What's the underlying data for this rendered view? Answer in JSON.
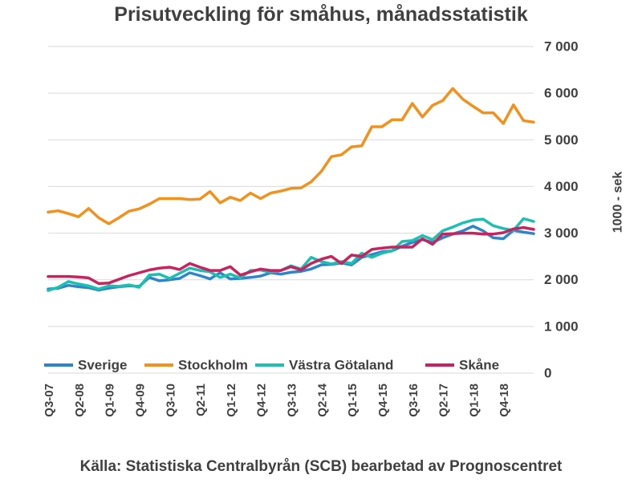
{
  "chart_data": {
    "type": "line",
    "title": "Prisutveckling för småhus, månadsstatistik",
    "ylabel": "1000 - sek",
    "xlabel": "",
    "ylim": [
      0,
      7000
    ],
    "y_ticks": [
      0,
      1000,
      2000,
      3000,
      4000,
      5000,
      6000,
      7000
    ],
    "y_tick_labels": [
      "0",
      "1 000",
      "2 000",
      "3 000",
      "4 000",
      "5 000",
      "6 000",
      "7 000"
    ],
    "y_axis_side": "right",
    "grid": "horizontal",
    "legend_position": "bottom-inside",
    "x_tick_labels": [
      "Q3-07",
      "Q2-08",
      "Q1-09",
      "Q4-09",
      "Q3-10",
      "Q2-11",
      "Q1-12",
      "Q4-12",
      "Q3-13",
      "Q2-14",
      "Q1-15",
      "Q4-15",
      "Q3-16",
      "Q2-17",
      "Q1-18",
      "Q4-18"
    ],
    "x_tick_step": 3,
    "categories": [
      "Q3-07",
      "Q4-07",
      "Q1-08",
      "Q2-08",
      "Q3-08",
      "Q4-08",
      "Q1-09",
      "Q2-09",
      "Q3-09",
      "Q4-09",
      "Q1-10",
      "Q2-10",
      "Q3-10",
      "Q4-10",
      "Q1-11",
      "Q2-11",
      "Q3-11",
      "Q4-11",
      "Q1-12",
      "Q2-12",
      "Q3-12",
      "Q4-12",
      "Q1-13",
      "Q2-13",
      "Q3-13",
      "Q4-13",
      "Q1-14",
      "Q2-14",
      "Q3-14",
      "Q4-14",
      "Q1-15",
      "Q2-15",
      "Q3-15",
      "Q4-15",
      "Q1-16",
      "Q2-16",
      "Q3-16",
      "Q4-16",
      "Q1-17",
      "Q2-17",
      "Q3-17",
      "Q4-17",
      "Q1-18",
      "Q2-18",
      "Q3-18",
      "Q4-18",
      "Q1-19",
      "Q2-19",
      "Q3-19"
    ],
    "series": [
      {
        "name": "Sverige",
        "color": "#2e86c8",
        "values": [
          1800,
          1820,
          1880,
          1850,
          1830,
          1780,
          1820,
          1850,
          1870,
          1860,
          2050,
          1980,
          2000,
          2030,
          2150,
          2090,
          2020,
          2150,
          2020,
          2030,
          2050,
          2080,
          2150,
          2120,
          2160,
          2180,
          2230,
          2320,
          2330,
          2360,
          2320,
          2480,
          2540,
          2600,
          2620,
          2720,
          2800,
          2860,
          2800,
          2900,
          2980,
          3050,
          3150,
          3050,
          2900,
          2880,
          3060,
          3020,
          2990
        ]
      },
      {
        "name": "Stockholm",
        "color": "#f2911b",
        "values": [
          3450,
          3480,
          3420,
          3350,
          3530,
          3330,
          3200,
          3330,
          3470,
          3520,
          3620,
          3740,
          3740,
          3740,
          3720,
          3730,
          3890,
          3650,
          3770,
          3700,
          3860,
          3740,
          3860,
          3900,
          3960,
          3970,
          4100,
          4320,
          4640,
          4680,
          4850,
          4870,
          5280,
          5280,
          5430,
          5430,
          5780,
          5490,
          5740,
          5840,
          6100,
          5870,
          5720,
          5580,
          5580,
          5350,
          5750,
          5410,
          5380
        ]
      },
      {
        "name": "Västra Götaland",
        "color": "#1dbfb1",
        "values": [
          1770,
          1840,
          1960,
          1910,
          1870,
          1800,
          1870,
          1860,
          1890,
          1840,
          2100,
          2120,
          2030,
          2140,
          2250,
          2200,
          2170,
          2050,
          2120,
          2040,
          2200,
          2210,
          2160,
          2200,
          2300,
          2230,
          2480,
          2390,
          2340,
          2390,
          2350,
          2570,
          2480,
          2570,
          2620,
          2820,
          2840,
          2950,
          2860,
          3050,
          3130,
          3220,
          3280,
          3300,
          3160,
          3100,
          3060,
          3310,
          3250
        ]
      },
      {
        "name": "Skåne",
        "color": "#c7235e",
        "values": [
          2070,
          2070,
          2070,
          2060,
          2040,
          1920,
          1930,
          2010,
          2090,
          2150,
          2210,
          2250,
          2270,
          2220,
          2350,
          2270,
          2200,
          2200,
          2280,
          2100,
          2170,
          2230,
          2200,
          2200,
          2280,
          2210,
          2350,
          2440,
          2500,
          2350,
          2530,
          2500,
          2650,
          2680,
          2700,
          2700,
          2700,
          2880,
          2760,
          2980,
          2990,
          3000,
          3000,
          2980,
          2980,
          3010,
          3090,
          3120,
          3080
        ]
      }
    ]
  },
  "source": "Källa: Statistiska Centralbyrån (SCB) bearbetad av Prognoscentret"
}
